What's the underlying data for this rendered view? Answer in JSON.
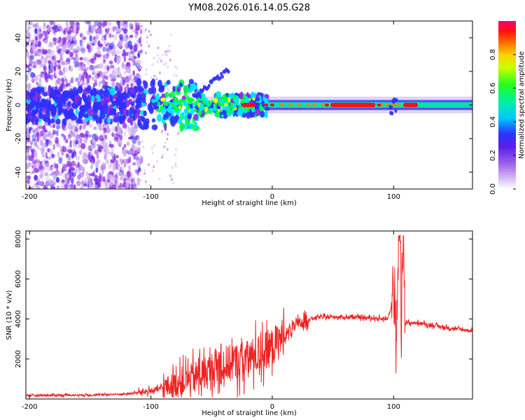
{
  "title": "YM08.2026.016.14.05.G28",
  "chart_data": [
    {
      "type": "heatmap",
      "title": "YM08.2026.016.14.05.G28",
      "xlabel": "Height of straight line (km)",
      "ylabel": "Frequency (Hz)",
      "xlim": [
        -203,
        165
      ],
      "ylim": [
        -50,
        50
      ],
      "x_ticks": [
        "-200",
        "-100",
        "0",
        "100"
      ],
      "x_tick_values": [
        -200,
        -100,
        0,
        100
      ],
      "y_ticks": [
        "40",
        "20",
        "0",
        "-20",
        "-40"
      ],
      "y_tick_values": [
        40,
        20,
        0,
        -20,
        -40
      ],
      "colorbar": {
        "label": "Normalized spectral amplitude",
        "range": [
          0,
          1
        ],
        "ticks": [
          "0.0",
          "0.2",
          "0.4",
          "0.6",
          "0.8"
        ],
        "tick_values": [
          0,
          0.2,
          0.4,
          0.6,
          0.8
        ],
        "colormap": [
          "#ffffff",
          "#c9a6f2",
          "#8a2be2",
          "#3030ff",
          "#00e5ff",
          "#00ff40",
          "#ffff00",
          "#ff8000",
          "#ff0000",
          "#ff0066"
        ]
      },
      "description_points": {
        "band_center_hz": 0,
        "max_amp_segments_km": [
          [
            -25,
            -15
          ],
          [
            48,
            85
          ],
          [
            108,
            120
          ]
        ]
      }
    },
    {
      "type": "line",
      "xlabel": "Height of straight line (km)",
      "ylabel": "SNR (10 * v/v)",
      "xlim": [
        -203,
        165
      ],
      "ylim": [
        0,
        8400
      ],
      "x_ticks": [
        "-200",
        "-100",
        "0",
        "100"
      ],
      "x_tick_values": [
        -200,
        -100,
        0,
        100
      ],
      "y_ticks": [
        "8000",
        "6000",
        "4000",
        "2000"
      ],
      "y_tick_values": [
        8000,
        6000,
        4000,
        2000
      ],
      "series": [
        {
          "name": "SNR",
          "color": "#ee2222",
          "x": [
            -203,
            -150,
            -120,
            -100,
            -80,
            -60,
            -40,
            -20,
            0,
            10,
            20,
            30,
            40,
            60,
            80,
            95,
            100,
            102,
            104,
            106,
            108,
            110,
            120,
            140,
            165
          ],
          "y": [
            180,
            200,
            250,
            400,
            700,
            1200,
            1700,
            2000,
            2600,
            3200,
            3700,
            4000,
            4100,
            4100,
            4050,
            4000,
            5000,
            2500,
            7000,
            3000,
            8300,
            3800,
            3800,
            3600,
            3400
          ]
        }
      ]
    }
  ]
}
